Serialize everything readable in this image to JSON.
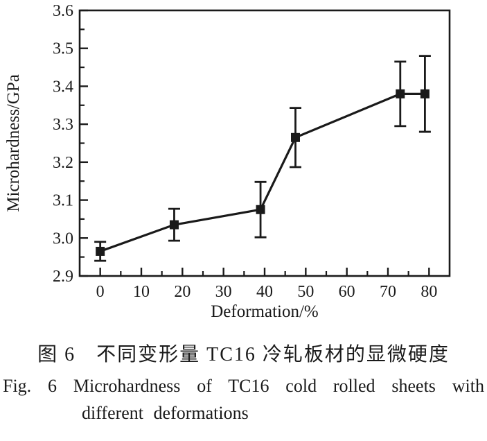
{
  "figure": {
    "caption_zh": "图 6　不同变形量 TC16 冷轧板材的显微硬度",
    "caption_en_line1": "Fig. 6  Microhardness of TC16 cold rolled sheets with",
    "caption_en_line2": "different deformations"
  },
  "chart_data": {
    "type": "line",
    "title": "",
    "xlabel": "Deformation/%",
    "ylabel": "Microhardness/GPa",
    "xlim": [
      -5,
      85
    ],
    "ylim": [
      2.9,
      3.6
    ],
    "x_major_ticks": [
      0,
      10,
      20,
      30,
      40,
      50,
      60,
      70,
      80
    ],
    "x_minor_step": 5,
    "y_major_ticks": [
      2.9,
      3.0,
      3.1,
      3.2,
      3.3,
      3.4,
      3.5,
      3.6
    ],
    "y_minor_step": 0.05,
    "grid": false,
    "legend": false,
    "frame_color": "#1a1a1a",
    "background": "#ffffff",
    "series": [
      {
        "name": "microhardness",
        "marker": "filled-square",
        "color": "#1a1a1a",
        "x": [
          0,
          18,
          39,
          47.5,
          73,
          79
        ],
        "y": [
          2.965,
          3.035,
          3.075,
          3.265,
          3.38,
          3.38
        ],
        "yerr": [
          0.025,
          0.042,
          0.073,
          0.078,
          0.085,
          0.1
        ]
      }
    ]
  }
}
